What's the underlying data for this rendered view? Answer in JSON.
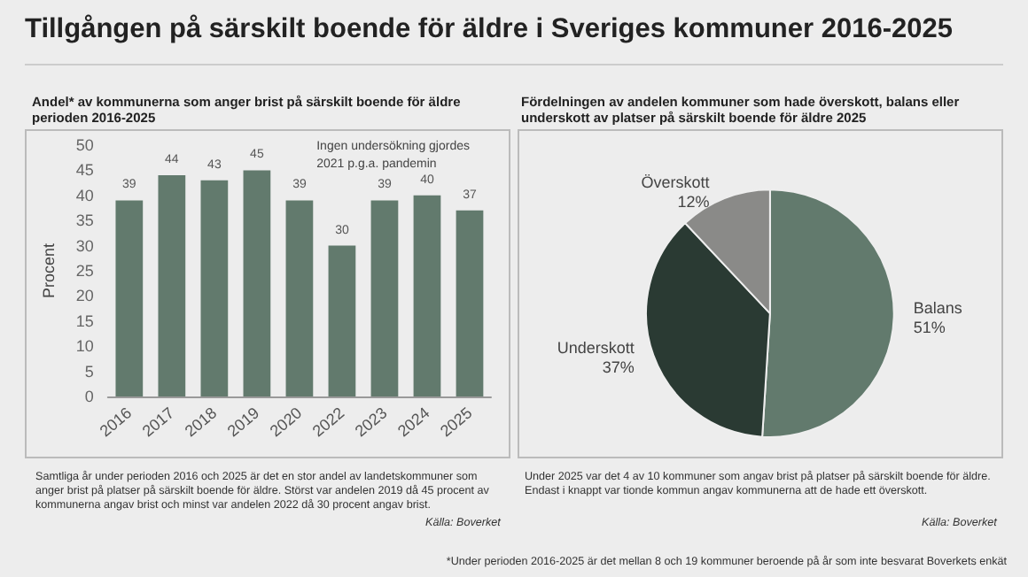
{
  "chart_data": [
    {
      "type": "bar",
      "title": "Tillgången på särskilt boende för äldre i Sveriges kommuner 2016-2025",
      "subtitle": "Andel* av kommunerna som anger brist på särskilt boende för äldre perioden 2016-2025",
      "ylabel": "Procent",
      "categories": [
        "2016",
        "2017",
        "2018",
        "2019",
        "2020",
        "2022",
        "2023",
        "2024",
        "2025"
      ],
      "values": [
        39,
        44,
        43,
        45,
        39,
        30,
        39,
        40,
        37
      ],
      "color": "#627a6d",
      "data_labels": true,
      "ylim": [
        0,
        50
      ],
      "yticks": [
        0,
        5,
        10,
        15,
        20,
        25,
        30,
        35,
        40,
        45,
        50
      ],
      "grid": false,
      "legend": false,
      "annotations": [
        "Ingen undersökning gjordes 2021 p.g.a. pandemin",
        "Samtliga år under perioden 2016 och 2025 är det en stor andel av landetskommuner som anger brist på platser på särskilt boende för äldre. Störst var andelen 2019 då 45 procent av kommunerna angav brist och minst var andelen 2022 då 30 procent angav brist.",
        "Källa: Boverket"
      ]
    },
    {
      "type": "pie",
      "title": "Fördelningen av andelen kommuner som hade överskott, balans eller underskott av platser på särskilt boende för äldre 2025",
      "categories": [
        "Balans",
        "Underskott",
        "Överskott"
      ],
      "values": [
        51,
        37,
        12
      ],
      "colors": [
        "#627a6d",
        "#2a3a33",
        "#8a8a88"
      ],
      "value_labels": [
        "51%",
        "37%",
        "12%"
      ],
      "legend": false,
      "annotations": [
        "Under 2025 var det 4 av 10 kommuner som angav brist på platser på särskilt boende för äldre. Endast i knappt var tionde kommun angav kommunerna att de hade ett överskott.",
        "Källa: Boverket",
        "*Under perioden 2016-2025 är det mellan 8 och 19 kommuner beroende på år som inte besvarat Boverkets enkät"
      ]
    }
  ]
}
